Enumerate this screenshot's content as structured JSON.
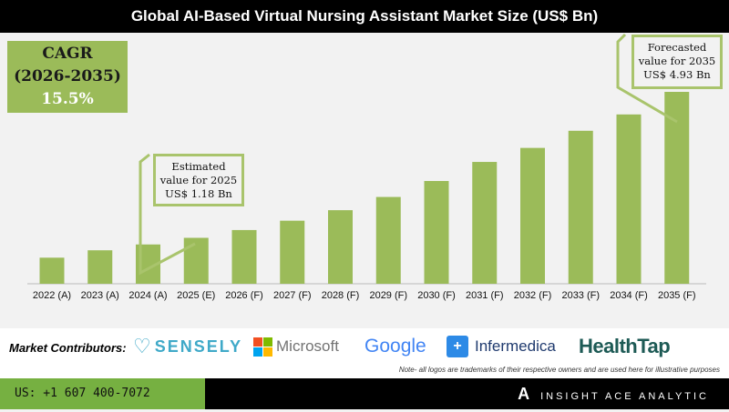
{
  "title": "Global AI-Based Virtual Nursing Assistant Market Size (US$ Bn)",
  "cagr": {
    "label": "CAGR",
    "period": "(2026-2035)",
    "value": "15.5%"
  },
  "callouts": {
    "c2025": [
      "Estimated",
      "value for 2025",
      "US$ 1.18 Bn"
    ],
    "c2035": [
      "Forecasted",
      "value for 2035",
      "US$ 4.93 Bn"
    ]
  },
  "chart_data": {
    "type": "bar",
    "title": "Global AI-Based Virtual Nursing Assistant Market Size (US$ Bn)",
    "categories": [
      "2022 (A)",
      "2023 (A)",
      "2024 (A)",
      "2025 (E)",
      "2026 (F)",
      "2027 (F)",
      "2028 (F)",
      "2029 (F)",
      "2030 (F)",
      "2031 (F)",
      "2032 (F)",
      "2033 (F)",
      "2034 (F)",
      "2035 (F)"
    ],
    "values": [
      0.67,
      0.86,
      1.01,
      1.18,
      1.38,
      1.62,
      1.89,
      2.23,
      2.64,
      3.13,
      3.49,
      3.93,
      4.35,
      4.93
    ],
    "ylim": [
      0,
      5
    ],
    "grid": false,
    "color": "#9bbb59"
  },
  "contributors": {
    "label": "Market Contributors:",
    "logos": [
      "SENSELY",
      "Microsoft",
      "Google",
      "Infermedica",
      "HealthTap"
    ],
    "note": "Note- all logos are trademarks of their respective owners and are used here for illustrative purposes"
  },
  "footer": {
    "phone": "US: +1 607 400-7072",
    "brand": "INSIGHT ACE ANALYTIC"
  }
}
